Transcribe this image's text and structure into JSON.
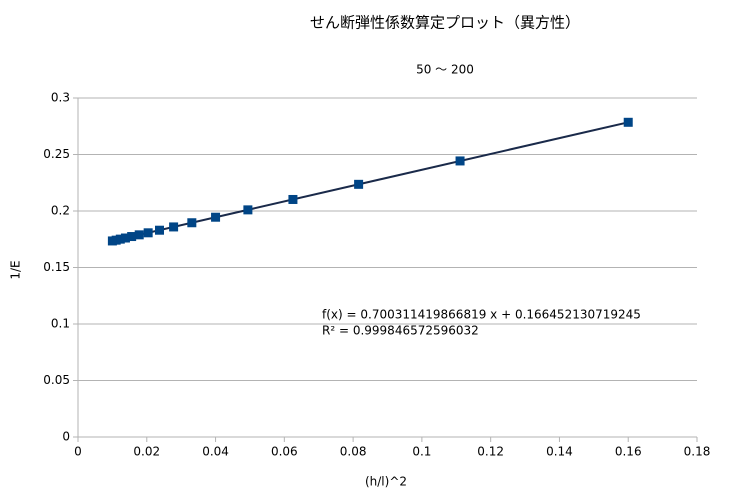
{
  "chart_data": {
    "type": "scatter",
    "title": "せん断弾性係数算定プロット（異方性）",
    "subtitle": "50 〜 200",
    "x_label": "(h/l)^2",
    "y_label": "1/E",
    "x": [
      0.16,
      0.1111,
      0.0816,
      0.0625,
      0.0494,
      0.04,
      0.0331,
      0.0278,
      0.0237,
      0.0204,
      0.0178,
      0.0156,
      0.0138,
      0.0123,
      0.0111,
      0.01
    ],
    "series": [
      {
        "name": "1/E",
        "color": "#004586",
        "values": [
          0.2785,
          0.2443,
          0.2236,
          0.2102,
          0.201,
          0.1945,
          0.1896,
          0.1859,
          0.183,
          0.1807,
          0.1789,
          0.1774,
          0.1761,
          0.1751,
          0.1742,
          0.1735
        ]
      }
    ],
    "trendline": {
      "slope": 0.700311419866819,
      "intercept": 0.166452130719245,
      "color": "#1a2a4a",
      "equation": "f(x) = 0.700311419866819 x + 0.166452130719245",
      "r_squared": "R² = 0.999846572596032"
    },
    "xlim": [
      0,
      0.18
    ],
    "xticks": [
      0,
      0.02,
      0.04,
      0.06,
      0.08,
      0.1,
      0.12,
      0.14,
      0.16,
      0.18
    ],
    "ylim": [
      0,
      0.3
    ],
    "yticks": [
      0,
      0.05,
      0.1,
      0.15,
      0.2,
      0.25,
      0.3
    ],
    "grid": true
  }
}
